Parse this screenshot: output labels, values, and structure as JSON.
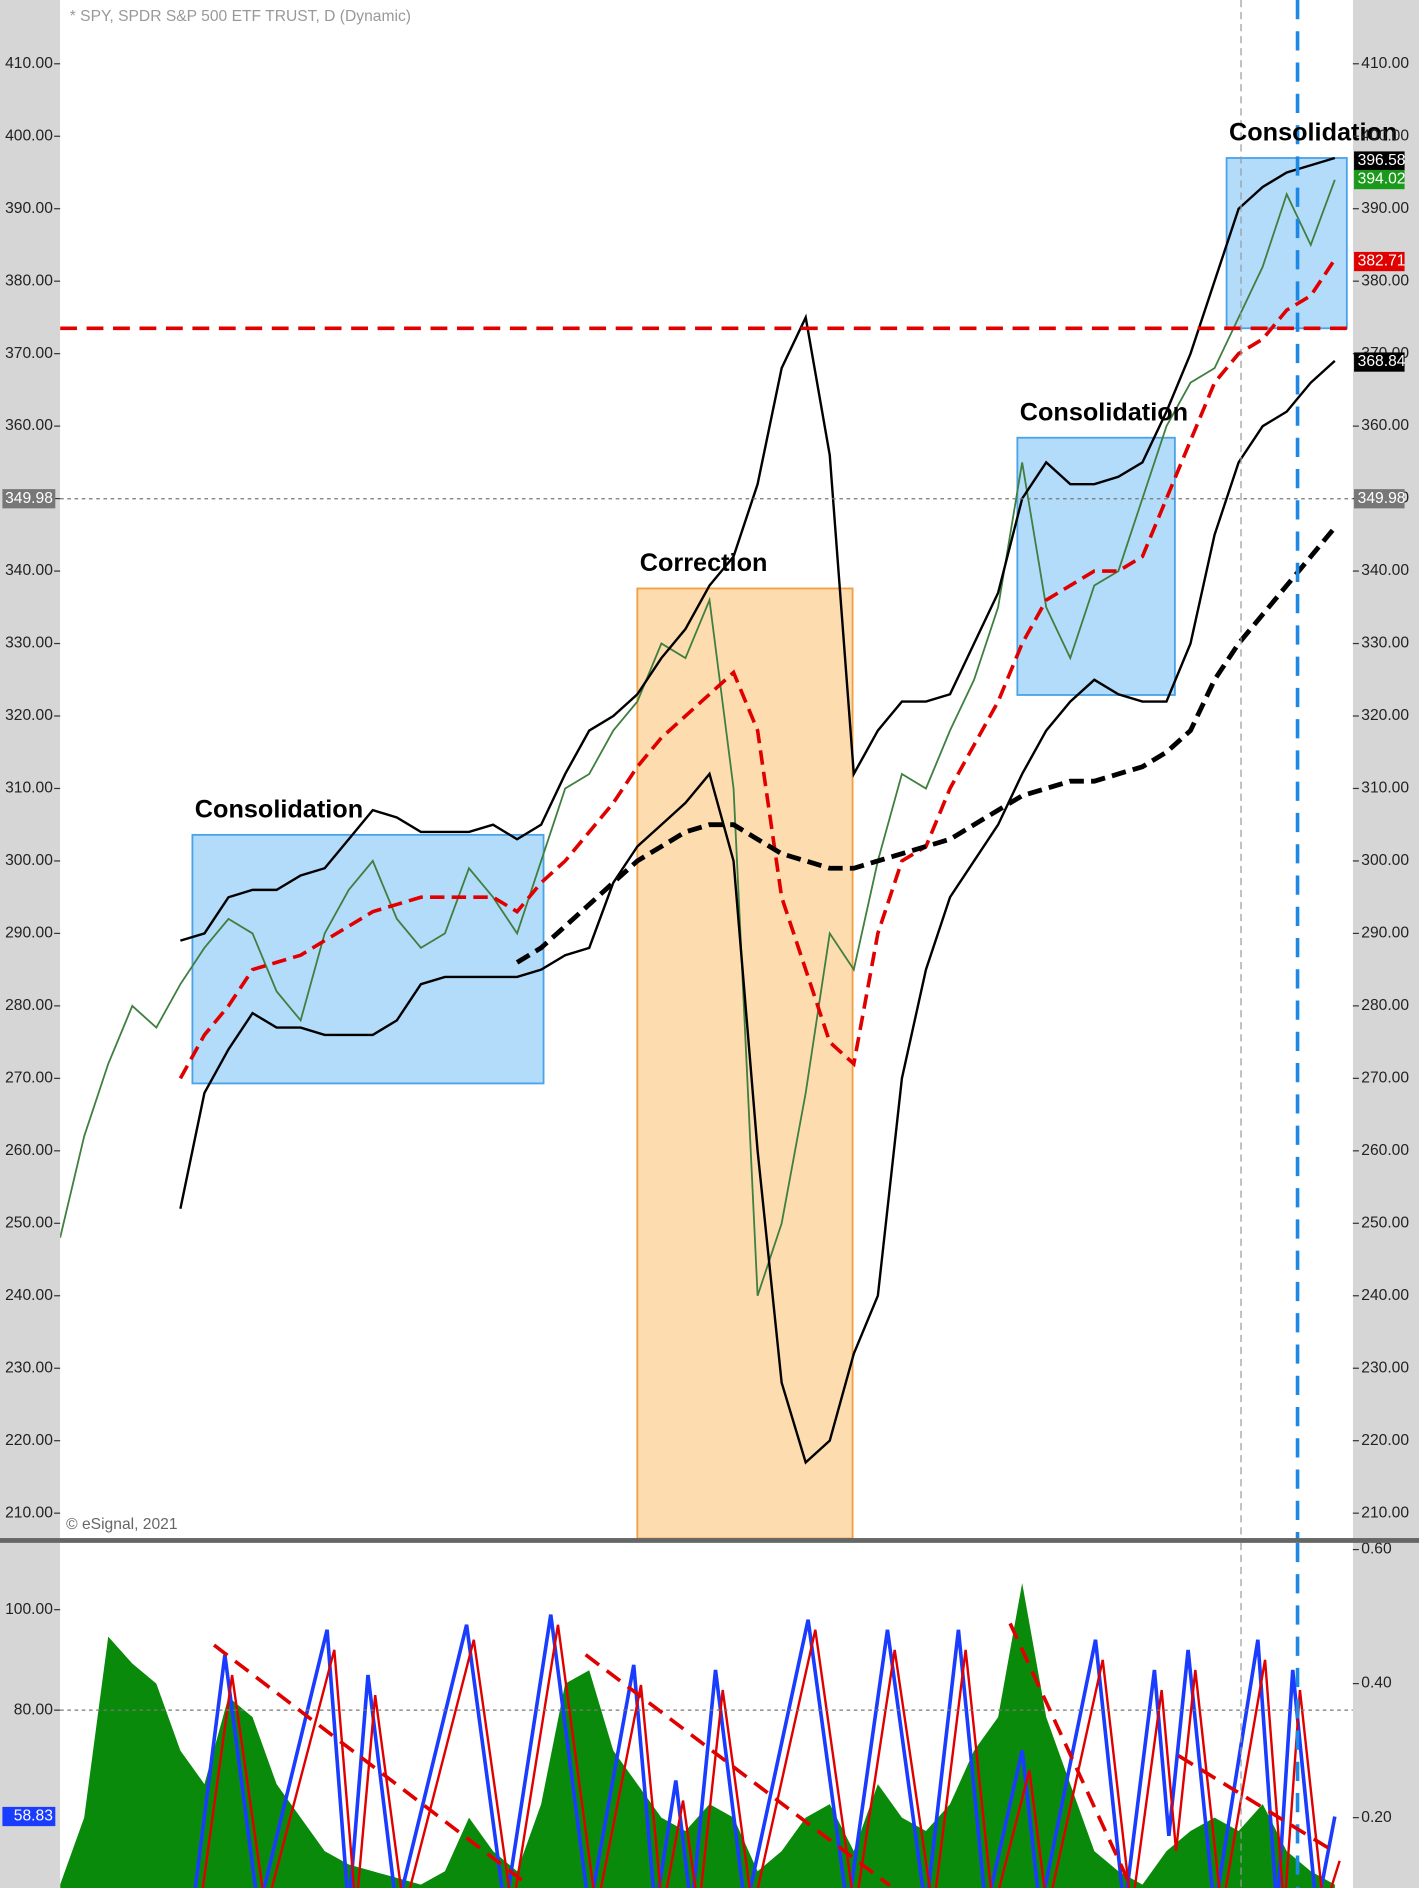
{
  "header": "* SPY, SPDR S&P 500 ETF TRUST, D (Dynamic)",
  "copyright": "© eSignal, 2021",
  "chart_data": [
    {
      "type": "line",
      "xlim": [
        0,
        53.75
      ],
      "ylim": [
        206.4,
        418.8
      ],
      "yticks": [
        {
          "value": 210,
          "label": "210.00"
        },
        {
          "value": 220,
          "label": "220.00"
        },
        {
          "value": 230,
          "label": "230.00"
        },
        {
          "value": 240,
          "label": "240.00"
        },
        {
          "value": 250,
          "label": "250.00"
        },
        {
          "value": 260,
          "label": "260.00"
        },
        {
          "value": 270,
          "label": "270.00"
        },
        {
          "value": 280,
          "label": "280.00"
        },
        {
          "value": 290,
          "label": "290.00"
        },
        {
          "value": 300,
          "label": "300.00"
        },
        {
          "value": 310,
          "label": "310.00"
        },
        {
          "value": 320,
          "label": "320.00"
        },
        {
          "value": 330,
          "label": "330.00"
        },
        {
          "value": 340,
          "label": "340.00"
        },
        {
          "value": 350,
          "label": "350.00"
        },
        {
          "value": 360,
          "label": "360.00"
        },
        {
          "value": 370,
          "label": "370.00"
        },
        {
          "value": 380,
          "label": "380.00"
        },
        {
          "value": 390,
          "label": "390.00"
        },
        {
          "value": 400,
          "label": "400.00"
        },
        {
          "value": 410,
          "label": "410.00"
        }
      ],
      "x": [
        0,
        1,
        2,
        3,
        4,
        5,
        6,
        7,
        8,
        9,
        10,
        11,
        12,
        13,
        14,
        15,
        16,
        17,
        18,
        19,
        20,
        21,
        22,
        23,
        24,
        25,
        26,
        27,
        28,
        29,
        30,
        31,
        32,
        33,
        34,
        35,
        36,
        37,
        38,
        39,
        40,
        41,
        42,
        43,
        44,
        45,
        46,
        47,
        48,
        49,
        50,
        51,
        52,
        53
      ],
      "series": [
        {
          "name": "SPY",
          "color": "#3f7f3f",
          "width": 1.5,
          "dash": false,
          "values": [
            248,
            262,
            272,
            280,
            277,
            283,
            288,
            292,
            290,
            282,
            278,
            290,
            296,
            300,
            292,
            288,
            290,
            299,
            295,
            290,
            300,
            310,
            312,
            318,
            322,
            330,
            328,
            336,
            310,
            240,
            250,
            268,
            290,
            285,
            300,
            312,
            310,
            318,
            325,
            335,
            355,
            335,
            328,
            338,
            340,
            350,
            360,
            366,
            368,
            375,
            382,
            392,
            385,
            394
          ]
        },
        {
          "name": "Upper band",
          "color": "#000000",
          "width": 2,
          "dash": false,
          "values": [
            null,
            null,
            null,
            null,
            null,
            289,
            290,
            295,
            296,
            296,
            298,
            299,
            303,
            307,
            306,
            304,
            304,
            304,
            305,
            303,
            305,
            312,
            318,
            320,
            323,
            328,
            332,
            338,
            342,
            352,
            368,
            375,
            356,
            312,
            318,
            322,
            322,
            323,
            330,
            337,
            350,
            355,
            352,
            352,
            353,
            355,
            362,
            370,
            380,
            390,
            393,
            395,
            396,
            397
          ]
        },
        {
          "name": "Lower band",
          "color": "#000000",
          "width": 2,
          "dash": false,
          "values": [
            null,
            null,
            null,
            null,
            null,
            252,
            268,
            274,
            279,
            277,
            277,
            276,
            276,
            276,
            278,
            283,
            284,
            284,
            284,
            284,
            285,
            287,
            288,
            297,
            302,
            305,
            308,
            312,
            300,
            260,
            228,
            217,
            220,
            232,
            240,
            270,
            285,
            295,
            300,
            305,
            312,
            318,
            322,
            325,
            323,
            322,
            322,
            330,
            345,
            355,
            360,
            362,
            366,
            369
          ]
        },
        {
          "name": "Moving average",
          "color": "#e00000",
          "width": 3,
          "dash": true,
          "values": [
            null,
            null,
            null,
            null,
            null,
            270,
            276,
            280,
            285,
            286,
            287,
            289,
            291,
            293,
            294,
            295,
            295,
            295,
            295,
            293,
            297,
            300,
            304,
            308,
            313,
            317,
            320,
            323,
            326,
            318,
            295,
            285,
            275,
            272,
            290,
            300,
            302,
            310,
            316,
            322,
            330,
            336,
            338,
            340,
            340,
            342,
            350,
            358,
            366,
            370,
            372,
            376,
            378,
            383
          ]
        },
        {
          "name": "Long moving average",
          "color": "#000000",
          "width": 4,
          "dash": true,
          "values": [
            null,
            null,
            null,
            null,
            null,
            null,
            null,
            null,
            null,
            null,
            null,
            null,
            null,
            null,
            null,
            null,
            null,
            null,
            null,
            286,
            288,
            291,
            294,
            297,
            300,
            302,
            304,
            305,
            305,
            303,
            301,
            300,
            299,
            299,
            300,
            301,
            302,
            303,
            305,
            307,
            309,
            310,
            311,
            311,
            312,
            313,
            315,
            318,
            325,
            330,
            334,
            338,
            342,
            346
          ]
        }
      ],
      "regions": [
        {
          "label": "Consolidation",
          "x": [
            5.5,
            20.1
          ],
          "y": [
            269.3,
            303.6
          ],
          "color": "#b3dcfb",
          "stroke": "#4aa3e8"
        },
        {
          "label": "Correction",
          "x": [
            24,
            32.95
          ],
          "y": [
            206.5,
            337.6
          ],
          "color": "#fddcaf",
          "stroke": "#f0a040"
        },
        {
          "label": "Consolidation",
          "x": [
            39.8,
            46.35
          ],
          "y": [
            322.9,
            358.4
          ],
          "color": "#b3dcfb",
          "stroke": "#4aa3e8"
        },
        {
          "label": "Consolidation",
          "x": [
            48.5,
            53.5
          ],
          "y": [
            373.5,
            397
          ],
          "color": "#b3dcfb",
          "stroke": "#4aa3e8"
        }
      ],
      "hlines": [
        {
          "value": 373.5,
          "color": "#e00000",
          "dash": "14,8",
          "width": 3
        },
        {
          "value": 349.98,
          "color": "#777777",
          "dash": "3,3",
          "width": 1
        }
      ],
      "vlines": [
        {
          "value": 49.1,
          "color": "#999999",
          "dash": "6,4",
          "width": 1
        },
        {
          "value": 51.45,
          "color": "#1e88e5",
          "dash": "16,10",
          "width": 3
        }
      ],
      "right_labels": [
        {
          "value": 396.58,
          "color": "#000000"
        },
        {
          "value": 394.02,
          "color": "#1a9a1a"
        },
        {
          "value": 382.71,
          "color": "#e00000"
        },
        {
          "value": 368.84,
          "color": "#000000"
        },
        {
          "value": 349.98,
          "color": "#777777"
        }
      ],
      "left_labels": [
        {
          "value": 349.98,
          "color": "#777777"
        }
      ]
    },
    {
      "type": "line",
      "xlim": [
        0,
        53.75
      ],
      "ylim": [
        44.6,
        113.3
      ],
      "y2lim": [
        0.095,
        0.61
      ],
      "yticks": [
        {
          "value": 80,
          "label": "80.00"
        },
        {
          "value": 100,
          "label": "100.00"
        }
      ],
      "y2ticks": [
        {
          "value": 0.2,
          "label": "0.20"
        },
        {
          "value": 0.4,
          "label": "0.40"
        },
        {
          "value": 0.6,
          "label": "0.60"
        }
      ],
      "x": [
        0,
        1,
        2,
        3,
        4,
        5,
        6,
        7,
        8,
        9,
        10,
        11,
        12,
        13,
        14,
        15,
        16,
        17,
        18,
        19,
        20,
        21,
        22,
        23,
        24,
        25,
        26,
        27,
        28,
        29,
        30,
        31,
        32,
        33,
        34,
        35,
        36,
        37,
        38,
        39,
        40,
        41,
        42,
        43,
        44,
        45,
        46,
        47,
        48,
        49,
        50,
        51,
        52,
        53
      ],
      "series": [
        {
          "name": "Histogram",
          "color": "#0a8a0a",
          "axis": "y2",
          "area": true,
          "values": [
            0.1,
            0.2,
            0.47,
            0.43,
            0.4,
            0.3,
            0.25,
            0.38,
            0.35,
            0.25,
            0.2,
            0.15,
            0.13,
            0.12,
            0.11,
            0.1,
            0.12,
            0.2,
            0.15,
            0.12,
            0.22,
            0.4,
            0.42,
            0.3,
            0.25,
            0.2,
            0.18,
            0.22,
            0.2,
            0.12,
            0.15,
            0.2,
            0.22,
            0.15,
            0.25,
            0.2,
            0.18,
            0.22,
            0.3,
            0.35,
            0.55,
            0.35,
            0.25,
            0.15,
            0.12,
            0.1,
            0.15,
            0.18,
            0.2,
            0.18,
            0.22,
            0.15,
            0.12,
            0.1
          ]
        },
        {
          "name": "%K",
          "color": "#1a3cff",
          "width": 3,
          "dash": false,
          "x": [
            5.5,
            6.85,
            8.25,
            11.1,
            12,
            12.8,
            14,
            16.9,
            18.5,
            20.4,
            22,
            23.85,
            24.75,
            25.6,
            26.25,
            27.25,
            28.5,
            31.1,
            32.75,
            34.4,
            36,
            37.35,
            38.5,
            40,
            40.75,
            43.05,
            44.25,
            45.5,
            46.1,
            46.9,
            48,
            49.8,
            50.6,
            51.25,
            52.25,
            53
          ],
          "values": [
            40,
            91,
            40,
            96,
            40,
            87,
            40,
            97,
            40,
            99,
            40,
            89,
            40,
            66,
            40,
            88,
            40,
            98,
            40,
            96,
            40,
            96,
            40,
            72,
            40,
            94,
            40,
            88,
            55,
            92,
            40,
            94,
            40,
            88,
            40,
            58.83
          ]
        },
        {
          "name": "%D",
          "color": "#e00000",
          "width": 2,
          "dash": false,
          "x": [
            5.8,
            7.15,
            8.55,
            11.4,
            12.3,
            13.1,
            14.3,
            17.2,
            18.8,
            20.7,
            22.3,
            24.15,
            25.05,
            25.9,
            26.55,
            27.55,
            28.8,
            31.4,
            33.05,
            34.7,
            36.3,
            37.65,
            38.8,
            40.3,
            41.05,
            43.35,
            44.55,
            45.8,
            46.4,
            47.2,
            48.3,
            50.1,
            50.9,
            51.55,
            52.55,
            53.2
          ],
          "values": [
            40,
            87,
            40,
            92,
            40,
            83,
            40,
            94,
            40,
            97,
            40,
            85,
            40,
            62,
            40,
            84,
            40,
            96,
            40,
            92,
            40,
            92,
            40,
            68,
            40,
            90,
            40,
            84,
            52,
            88,
            40,
            90,
            40,
            84,
            40,
            50
          ]
        }
      ],
      "hlines": [
        {
          "value": 80,
          "color": "#777777",
          "dash": "3,3",
          "width": 1
        }
      ],
      "vlines": [
        {
          "value": 49.1,
          "color": "#999999",
          "dash": "6,4",
          "width": 1
        },
        {
          "value": 51.45,
          "color": "#1e88e5",
          "dash": "16,10",
          "width": 3
        }
      ],
      "left_labels": [
        {
          "value": 58.83,
          "color": "#1a3cff"
        }
      ]
    }
  ]
}
